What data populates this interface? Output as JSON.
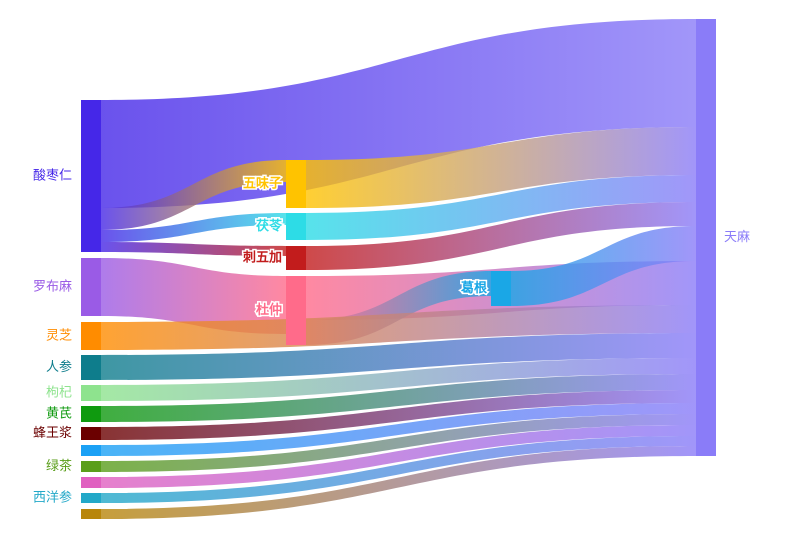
{
  "chart_data": {
    "type": "sankey",
    "nodes": [
      {
        "name": "酸枣仁",
        "color": "#4527e8"
      },
      {
        "name": "罗布麻",
        "color": "#9a5be6"
      },
      {
        "name": "灵芝",
        "color": "#ff8c00"
      },
      {
        "name": "人参",
        "color": "#0e7d8c"
      },
      {
        "name": "枸杞",
        "color": "#8ee38e"
      },
      {
        "name": "黄芪",
        "color": "#0f9a0f"
      },
      {
        "name": "蜂王浆",
        "color": "#6b0000"
      },
      {
        "name": null,
        "color": "#1ba1f5"
      },
      {
        "name": "绿茶",
        "color": "#5a9e1a"
      },
      {
        "name": null,
        "color": "#e060c0"
      },
      {
        "name": "西洋参",
        "color": "#22a8c8"
      },
      {
        "name": null,
        "color": "#b8860b"
      },
      {
        "name": "五味子",
        "color": "#ffc300"
      },
      {
        "name": "茯苓",
        "color": "#2ddce6"
      },
      {
        "name": "刺五加",
        "color": "#c21c1c"
      },
      {
        "name": "杜仲",
        "color": "#ff6b8a"
      },
      {
        "name": "葛根",
        "color": "#1aa7e6"
      },
      {
        "name": "天麻",
        "color": "#8a7cf8"
      }
    ],
    "links": [
      {
        "source": 0,
        "target": 17,
        "value": 108
      },
      {
        "source": 0,
        "target": 12,
        "value": 22
      },
      {
        "source": 0,
        "target": 13,
        "value": 12
      },
      {
        "source": 0,
        "target": 14,
        "value": 10
      },
      {
        "source": 1,
        "target": 15,
        "value": 58
      },
      {
        "source": 12,
        "target": 17,
        "value": 48
      },
      {
        "source": 13,
        "target": 17,
        "value": 27
      },
      {
        "source": 14,
        "target": 17,
        "value": 24
      },
      {
        "source": 15,
        "target": 17,
        "value": 44
      },
      {
        "source": 15,
        "target": 16,
        "value": 25
      },
      {
        "source": 16,
        "target": 17,
        "value": 35
      },
      {
        "source": 2,
        "target": 17,
        "value": 28
      },
      {
        "source": 3,
        "target": 17,
        "value": 25
      },
      {
        "source": 4,
        "target": 17,
        "value": 16
      },
      {
        "source": 5,
        "target": 17,
        "value": 16
      },
      {
        "source": 6,
        "target": 17,
        "value": 13
      },
      {
        "source": 7,
        "target": 17,
        "value": 11
      },
      {
        "source": 8,
        "target": 17,
        "value": 11
      },
      {
        "source": 9,
        "target": 17,
        "value": 11
      },
      {
        "source": 10,
        "target": 17,
        "value": 10
      },
      {
        "source": 11,
        "target": 17,
        "value": 10
      }
    ]
  }
}
